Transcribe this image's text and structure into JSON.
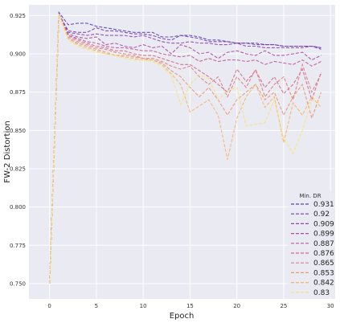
{
  "chart_data": {
    "type": "line",
    "xlabel": "Epoch",
    "ylabel": "FW-2 Distortion",
    "xlim": [
      -2.2,
      30.5
    ],
    "ylim": [
      0.74,
      0.932
    ],
    "xticks": [
      0,
      5,
      10,
      15,
      20,
      25,
      30
    ],
    "yticks": [
      0.75,
      0.775,
      0.8,
      0.825,
      0.85,
      0.875,
      0.9,
      0.925
    ],
    "grid": true,
    "legend": {
      "title": "Min. DR",
      "placement": "bottom-right"
    },
    "x": [
      0,
      1,
      2,
      3,
      4,
      5,
      6,
      7,
      8,
      9,
      10,
      11,
      12,
      13,
      14,
      15,
      16,
      17,
      18,
      19,
      20,
      21,
      22,
      23,
      24,
      25,
      26,
      27,
      28,
      29
    ],
    "series": [
      {
        "name": "0.931",
        "color": "#5b3fb0",
        "values": [
          0.75,
          0.927,
          0.919,
          0.92,
          0.92,
          0.918,
          0.917,
          0.916,
          0.915,
          0.914,
          0.914,
          0.914,
          0.911,
          0.911,
          0.912,
          0.912,
          0.911,
          0.909,
          0.909,
          0.908,
          0.907,
          0.907,
          0.907,
          0.906,
          0.906,
          0.905,
          0.905,
          0.905,
          0.905,
          0.904
        ]
      },
      {
        "name": "0.92",
        "color": "#7440b0",
        "values": [
          0.75,
          0.926,
          0.915,
          0.914,
          0.914,
          0.917,
          0.915,
          0.915,
          0.914,
          0.913,
          0.913,
          0.912,
          0.91,
          0.909,
          0.912,
          0.911,
          0.91,
          0.908,
          0.908,
          0.908,
          0.907,
          0.907,
          0.906,
          0.906,
          0.906,
          0.905,
          0.905,
          0.905,
          0.905,
          0.903
        ]
      },
      {
        "name": "0.909",
        "color": "#8e45ad",
        "values": [
          0.75,
          0.926,
          0.914,
          0.913,
          0.912,
          0.913,
          0.912,
          0.912,
          0.912,
          0.911,
          0.912,
          0.91,
          0.908,
          0.907,
          0.907,
          0.908,
          0.907,
          0.907,
          0.906,
          0.906,
          0.907,
          0.905,
          0.905,
          0.904,
          0.904,
          0.904,
          0.904,
          0.904,
          0.905,
          0.904
        ]
      },
      {
        "name": "0.899",
        "color": "#a94ca4",
        "values": [
          0.75,
          0.926,
          0.913,
          0.911,
          0.91,
          0.911,
          0.906,
          0.907,
          0.905,
          0.904,
          0.906,
          0.904,
          0.905,
          0.9,
          0.906,
          0.904,
          0.9,
          0.901,
          0.897,
          0.901,
          0.902,
          0.9,
          0.899,
          0.902,
          0.899,
          0.899,
          0.9,
          0.901,
          0.896,
          0.899
        ]
      },
      {
        "name": "0.887",
        "color": "#c05a98",
        "values": [
          0.75,
          0.926,
          0.912,
          0.91,
          0.908,
          0.907,
          0.905,
          0.904,
          0.904,
          0.903,
          0.902,
          0.902,
          0.9,
          0.899,
          0.898,
          0.899,
          0.895,
          0.897,
          0.895,
          0.896,
          0.896,
          0.895,
          0.896,
          0.893,
          0.895,
          0.894,
          0.893,
          0.896,
          0.892,
          0.895
        ]
      },
      {
        "name": "0.876",
        "color": "#d26a8a",
        "values": [
          0.75,
          0.926,
          0.912,
          0.909,
          0.907,
          0.905,
          0.904,
          0.902,
          0.902,
          0.9,
          0.899,
          0.899,
          0.897,
          0.895,
          0.893,
          0.893,
          0.889,
          0.885,
          0.88,
          0.875,
          0.89,
          0.882,
          0.889,
          0.878,
          0.885,
          0.874,
          0.88,
          0.89,
          0.87,
          0.888
        ]
      },
      {
        "name": "0.865",
        "color": "#df7e7e",
        "values": [
          0.75,
          0.926,
          0.911,
          0.908,
          0.906,
          0.904,
          0.903,
          0.901,
          0.9,
          0.899,
          0.897,
          0.897,
          0.895,
          0.892,
          0.89,
          0.892,
          0.885,
          0.88,
          0.885,
          0.872,
          0.885,
          0.878,
          0.89,
          0.872,
          0.88,
          0.885,
          0.87,
          0.893,
          0.875,
          0.887
        ]
      },
      {
        "name": "0.853",
        "color": "#eb9572",
        "values": [
          0.75,
          0.926,
          0.91,
          0.907,
          0.905,
          0.903,
          0.901,
          0.899,
          0.899,
          0.898,
          0.897,
          0.896,
          0.894,
          0.889,
          0.885,
          0.878,
          0.872,
          0.878,
          0.87,
          0.86,
          0.87,
          0.875,
          0.88,
          0.87,
          0.875,
          0.86,
          0.872,
          0.88,
          0.858,
          0.875
        ]
      },
      {
        "name": "0.842",
        "color": "#f4b66a",
        "values": [
          0.75,
          0.926,
          0.91,
          0.906,
          0.904,
          0.902,
          0.9,
          0.899,
          0.898,
          0.897,
          0.896,
          0.896,
          0.893,
          0.887,
          0.88,
          0.862,
          0.866,
          0.87,
          0.86,
          0.831,
          0.858,
          0.872,
          0.88,
          0.865,
          0.872,
          0.842,
          0.868,
          0.86,
          0.872,
          0.865
        ]
      },
      {
        "name": "0.83",
        "color": "#f8e27a",
        "values": [
          0.75,
          0.926,
          0.909,
          0.905,
          0.903,
          0.901,
          0.9,
          0.899,
          0.897,
          0.896,
          0.896,
          0.895,
          0.892,
          0.886,
          0.867,
          0.88,
          0.886,
          0.884,
          0.87,
          0.876,
          0.878,
          0.853,
          0.854,
          0.855,
          0.87,
          0.845,
          0.835,
          0.85,
          0.87,
          0.868
        ]
      }
    ]
  }
}
